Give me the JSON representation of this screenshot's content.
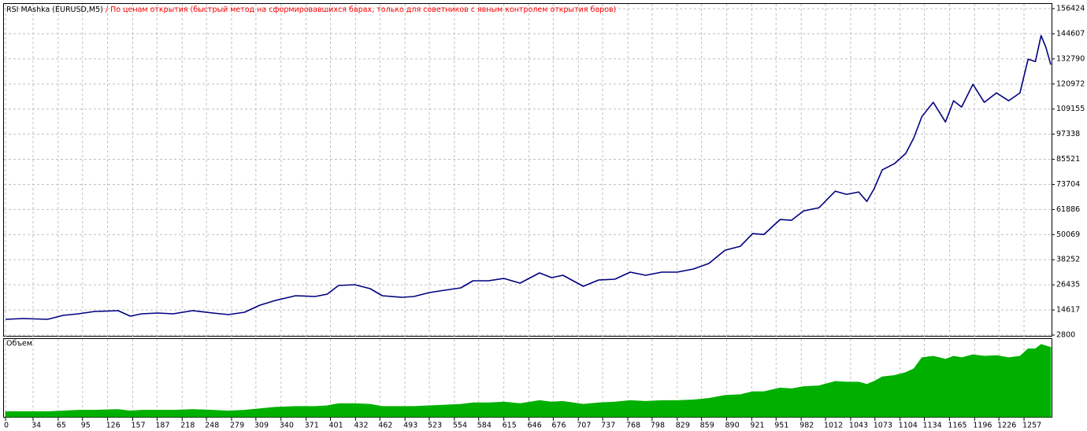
{
  "chart_data": [
    {
      "type": "line",
      "title": "RSI MAshka (EURUSD,M5)",
      "subtitle": "/ По ценам открытия (быстрый метод на сформировавшихся барах, только для советников с явным контролем открытия баров)",
      "x": [
        0,
        22,
        52,
        71,
        90,
        110,
        139,
        154,
        168,
        188,
        207,
        231,
        256,
        275,
        295,
        314,
        333,
        358,
        382,
        397,
        411,
        431,
        450,
        465,
        489,
        504,
        523,
        542,
        562,
        577,
        596,
        615,
        635,
        659,
        674,
        688,
        713,
        732,
        752,
        771,
        790,
        810,
        829,
        849,
        868,
        888,
        907,
        922,
        936,
        956,
        970,
        985,
        1004,
        1024,
        1038,
        1053,
        1063,
        1072,
        1082,
        1097,
        1111,
        1121,
        1131,
        1145,
        1160,
        1170,
        1180,
        1194,
        1208,
        1223,
        1238,
        1252,
        1262,
        1271,
        1278,
        1284,
        1290
      ],
      "series": [
        {
          "color": "#000080",
          "values": [
            10200,
            10570,
            10200,
            12050,
            12790,
            13900,
            14270,
            11680,
            12790,
            13160,
            12790,
            14270,
            13160,
            12420,
            13530,
            16860,
            19080,
            21300,
            20930,
            22040,
            26110,
            26480,
            24630,
            21300,
            20560,
            20930,
            22780,
            23890,
            25000,
            28330,
            28330,
            29440,
            27220,
            32030,
            29810,
            30920,
            25740,
            28700,
            29070,
            32400,
            30920,
            32400,
            32400,
            33880,
            36470,
            42760,
            44610,
            50530,
            50160,
            57190,
            56820,
            61260,
            62740,
            70510,
            69030,
            70140,
            65700,
            71620,
            80500,
            83460,
            88270,
            95670,
            105660,
            112320,
            103070,
            113060,
            110100,
            120830,
            112320,
            116760,
            113060,
            116760,
            132670,
            131560,
            143770,
            138220,
            130080
          ]
        }
      ],
      "xlim": [
        0,
        1290
      ],
      "ylim": [
        2800,
        156424
      ],
      "yticks": [
        2800,
        14617,
        26435,
        38252,
        50069,
        61886,
        73704,
        85521,
        97338,
        109155,
        120972,
        132790,
        144607,
        156424
      ],
      "grid": true
    },
    {
      "type": "area",
      "label": "Объем",
      "color": "#00b000",
      "x": [
        0,
        22,
        52,
        71,
        90,
        110,
        139,
        154,
        168,
        188,
        207,
        231,
        256,
        275,
        295,
        314,
        333,
        358,
        382,
        397,
        411,
        431,
        450,
        465,
        489,
        504,
        523,
        542,
        562,
        577,
        596,
        615,
        635,
        659,
        674,
        688,
        713,
        732,
        752,
        771,
        790,
        810,
        829,
        849,
        868,
        888,
        907,
        922,
        936,
        956,
        970,
        985,
        1004,
        1024,
        1038,
        1053,
        1063,
        1072,
        1082,
        1097,
        1111,
        1121,
        1131,
        1145,
        1160,
        1170,
        1180,
        1194,
        1208,
        1223,
        1238,
        1252,
        1262,
        1271,
        1278,
        1284,
        1290
      ],
      "values": [
        0.07,
        0.07,
        0.07,
        0.08,
        0.09,
        0.09,
        0.1,
        0.08,
        0.09,
        0.09,
        0.09,
        0.1,
        0.09,
        0.08,
        0.09,
        0.11,
        0.13,
        0.14,
        0.14,
        0.15,
        0.18,
        0.18,
        0.17,
        0.14,
        0.14,
        0.14,
        0.15,
        0.16,
        0.17,
        0.19,
        0.19,
        0.2,
        0.18,
        0.22,
        0.2,
        0.21,
        0.17,
        0.19,
        0.2,
        0.22,
        0.21,
        0.22,
        0.22,
        0.23,
        0.25,
        0.29,
        0.3,
        0.34,
        0.34,
        0.39,
        0.38,
        0.41,
        0.42,
        0.48,
        0.47,
        0.47,
        0.44,
        0.48,
        0.54,
        0.56,
        0.6,
        0.65,
        0.8,
        0.82,
        0.78,
        0.82,
        0.8,
        0.84,
        0.82,
        0.83,
        0.8,
        0.82,
        0.92,
        0.92,
        0.98,
        0.96,
        0.94
      ],
      "xlim": [
        0,
        1290
      ],
      "ylim": [
        0,
        1
      ],
      "xticks": [
        0,
        34,
        65,
        95,
        126,
        157,
        187,
        218,
        248,
        279,
        309,
        340,
        371,
        401,
        432,
        462,
        493,
        523,
        554,
        584,
        615,
        646,
        676,
        707,
        737,
        768,
        798,
        829,
        859,
        890,
        921,
        951,
        982,
        1012,
        1043,
        1073,
        1104,
        1134,
        1165,
        1196,
        1226,
        1257
      ],
      "grid": true
    }
  ]
}
